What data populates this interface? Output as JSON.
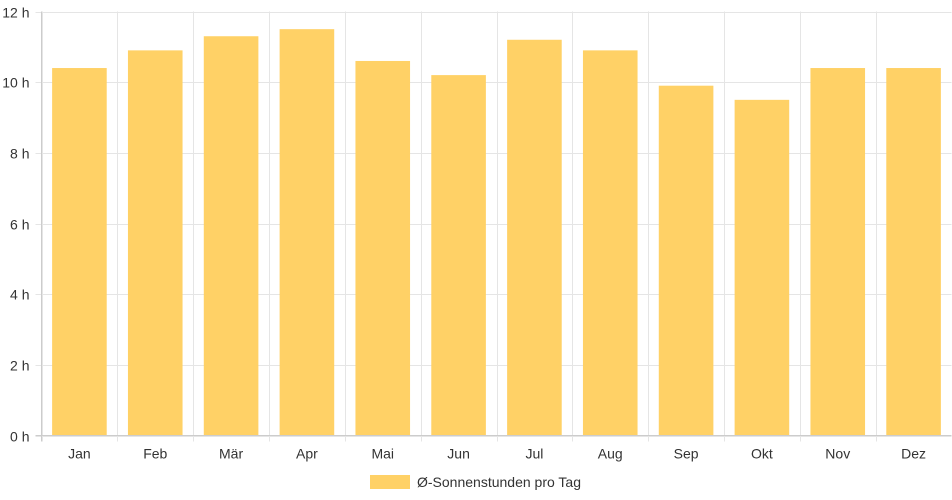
{
  "chart_data": {
    "type": "bar",
    "categories": [
      "Jan",
      "Feb",
      "Mär",
      "Apr",
      "Mai",
      "Jun",
      "Jul",
      "Aug",
      "Sep",
      "Okt",
      "Nov",
      "Dez"
    ],
    "series": [
      {
        "name": "Ø-Sonnenstunden pro Tag",
        "values": [
          10.4,
          10.9,
          11.3,
          11.5,
          10.6,
          10.2,
          11.2,
          10.9,
          9.9,
          9.5,
          10.4,
          10.4
        ],
        "color": "#ffd166"
      }
    ],
    "ylim": [
      0,
      12
    ],
    "yticks": [
      0,
      2,
      4,
      6,
      8,
      10,
      12
    ],
    "ytick_suffix": " h",
    "grid": true,
    "legend": "bottom"
  }
}
